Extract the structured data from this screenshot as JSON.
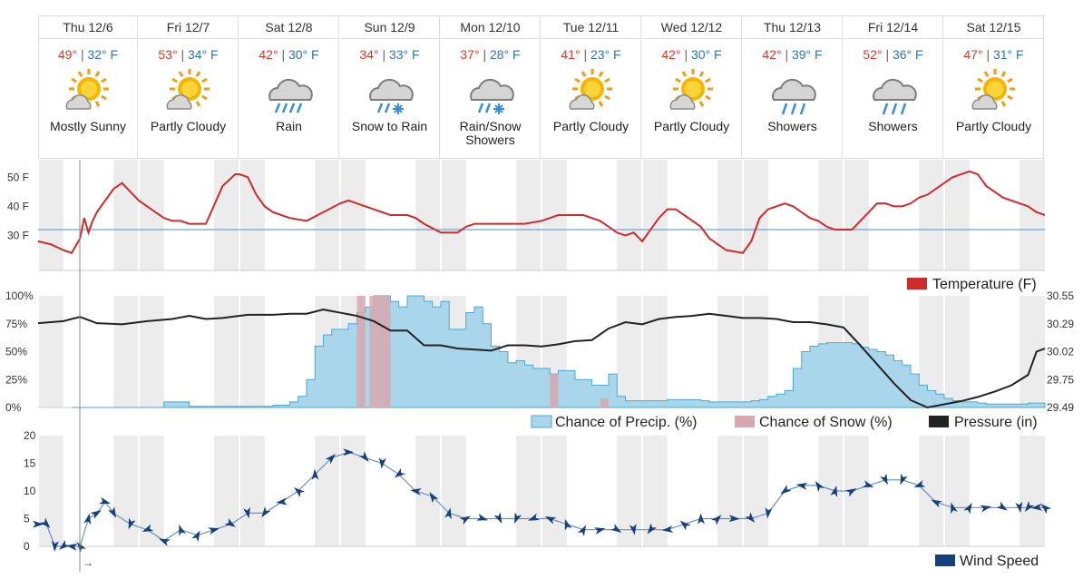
{
  "forecast": {
    "days": [
      {
        "label": "Thu 12/6",
        "hi": "49°",
        "lo": "32°",
        "unit": "F",
        "cond": "Mostly Sunny",
        "icon": "sun-cloud-icon"
      },
      {
        "label": "Fri 12/7",
        "hi": "53°",
        "lo": "34°",
        "unit": "F",
        "cond": "Partly Cloudy",
        "icon": "sun-cloud-icon"
      },
      {
        "label": "Sat 12/8",
        "hi": "42°",
        "lo": "30°",
        "unit": "F",
        "cond": "Rain",
        "icon": "rain-cloud-icon"
      },
      {
        "label": "Sun 12/9",
        "hi": "34°",
        "lo": "33°",
        "unit": "F",
        "cond": "Snow to Rain",
        "icon": "rain-snow-cloud-icon"
      },
      {
        "label": "Mon 12/10",
        "hi": "37°",
        "lo": "28°",
        "unit": "F",
        "cond": "Rain/Snow Showers",
        "icon": "rain-snow-cloud-icon"
      },
      {
        "label": "Tue 12/11",
        "hi": "41°",
        "lo": "23°",
        "unit": "F",
        "cond": "Partly Cloudy",
        "icon": "sun-cloud-icon"
      },
      {
        "label": "Wed 12/12",
        "hi": "42°",
        "lo": "30°",
        "unit": "F",
        "cond": "Partly Cloudy",
        "icon": "sun-cloud-icon"
      },
      {
        "label": "Thu 12/13",
        "hi": "42°",
        "lo": "39°",
        "unit": "F",
        "cond": "Showers",
        "icon": "showers-cloud-icon"
      },
      {
        "label": "Fri 12/14",
        "hi": "52°",
        "lo": "36°",
        "unit": "F",
        "cond": "Showers",
        "icon": "showers-cloud-icon"
      },
      {
        "label": "Sat 12/15",
        "hi": "47°",
        "lo": "31°",
        "unit": "F",
        "cond": "Partly Cloudy",
        "icon": "sun-cloud-icon"
      }
    ]
  },
  "colors": {
    "temperature": "#d02b2b",
    "freezing_line": "#4a8fd0",
    "precip_fill": "#a9d6ea",
    "precip_line": "#4fa6d4",
    "snow_fill": "#d8a8b0",
    "pressure": "#222222",
    "wind": "#14407e",
    "night_band": "#ececec"
  },
  "chart_data": [
    {
      "type": "line",
      "name": "temperature",
      "x_unit": "hours from Thu 12/6 00:00",
      "xlim": [
        0,
        240
      ],
      "ylabels": [
        "50 F",
        "40 F",
        "30 F"
      ],
      "ylim": [
        18,
        56
      ],
      "freezing_line": 32,
      "legend": "Temperature (F)",
      "legend_position": "bottom-right",
      "series": [
        {
          "name": "Temperature (F)",
          "x": [
            0,
            3,
            6,
            8,
            10,
            11,
            12,
            13,
            14,
            18,
            20,
            24,
            28,
            30,
            32,
            34,
            36,
            40,
            44,
            47,
            48,
            50,
            52,
            54,
            56,
            58,
            60,
            64,
            68,
            72,
            74,
            76,
            78,
            80,
            84,
            88,
            90,
            92,
            96,
            100,
            102,
            104,
            106,
            110,
            112,
            114,
            116,
            120,
            122,
            124,
            126,
            130,
            134,
            136,
            138,
            140,
            142,
            144,
            148,
            150,
            152,
            154,
            158,
            160,
            162,
            164,
            168,
            170,
            172,
            174,
            178,
            180,
            182,
            184,
            186,
            188,
            190,
            192,
            194,
            196,
            198,
            200,
            202,
            204,
            206,
            208,
            210,
            212,
            216,
            218,
            220,
            222,
            224,
            226,
            228,
            230,
            234,
            236,
            238,
            240
          ],
          "y": [
            28,
            27,
            25,
            24,
            29,
            36,
            31,
            35,
            38,
            46,
            48,
            42,
            38,
            36,
            35,
            35,
            34,
            34,
            47,
            51,
            51,
            50,
            44,
            40,
            38,
            37,
            36,
            35,
            38,
            41,
            42,
            41,
            40,
            39,
            37,
            37,
            36,
            34,
            31,
            31,
            33,
            34,
            34,
            34,
            34,
            34,
            34,
            35,
            36,
            37,
            37,
            37,
            35,
            33,
            31,
            30,
            31,
            28,
            36,
            39,
            39,
            37,
            33,
            29,
            27,
            25,
            24,
            28,
            36,
            39,
            41,
            40,
            38,
            36,
            35,
            33,
            32,
            32,
            32,
            35,
            38,
            41,
            41,
            40,
            40,
            41,
            43,
            44,
            48,
            50,
            51,
            52,
            51,
            47,
            45,
            43,
            41,
            40,
            38,
            37
          ]
        }
      ]
    },
    {
      "type": "area",
      "name": "precipitation",
      "ylabels_left": [
        "100%",
        "75%",
        "50%",
        "25%",
        "0%"
      ],
      "ylabels_right": [
        "30.55",
        "30.29",
        "30.02",
        "29.75",
        "29.49"
      ],
      "ylim_left": [
        0,
        100
      ],
      "ylim_right": [
        29.49,
        30.55
      ],
      "legend": [
        "Chance of Precip. (%)",
        "Chance of Snow (%)",
        "Pressure (in)"
      ],
      "legend_position": "bottom-right",
      "precip": {
        "name": "Chance of Precip. (%)",
        "x": [
          8,
          20,
          30,
          34,
          36,
          40,
          44,
          48,
          52,
          56,
          60,
          62,
          64,
          66,
          68,
          70,
          72,
          74,
          76,
          78,
          80,
          82,
          84,
          86,
          88,
          90,
          92,
          94,
          96,
          98,
          100,
          102,
          104,
          106,
          108,
          110,
          112,
          114,
          116,
          118,
          120,
          122,
          124,
          128,
          132,
          136,
          138,
          140,
          142,
          144,
          146,
          150,
          154,
          158,
          160,
          162,
          164,
          166,
          168,
          170,
          172,
          174,
          176,
          178,
          180,
          182,
          184,
          186,
          188,
          190,
          192,
          194,
          196,
          198,
          200,
          202,
          204,
          206,
          208,
          210,
          212,
          214,
          216,
          218,
          220,
          222,
          224,
          226,
          228,
          230,
          232,
          234,
          236,
          238,
          240
        ],
        "y": [
          0,
          0,
          5,
          5,
          1,
          1,
          1,
          1,
          1,
          2,
          5,
          10,
          25,
          55,
          65,
          70,
          70,
          75,
          85,
          90,
          100,
          100,
          95,
          90,
          100,
          100,
          95,
          90,
          95,
          70,
          70,
          85,
          90,
          75,
          55,
          50,
          40,
          42,
          38,
          35,
          35,
          30,
          33,
          25,
          20,
          30,
          10,
          6,
          6,
          6,
          6,
          7,
          7,
          6,
          5,
          5,
          5,
          5,
          5,
          6,
          7,
          10,
          12,
          15,
          35,
          50,
          55,
          57,
          58,
          58,
          58,
          57,
          54,
          52,
          50,
          47,
          42,
          38,
          30,
          20,
          15,
          12,
          8,
          6,
          5,
          5,
          4,
          3,
          3,
          3,
          3,
          3,
          4,
          4,
          4
        ]
      },
      "snow": {
        "name": "Chance of Snow (%)",
        "segments": [
          [
            76,
            78,
            100
          ],
          [
            79,
            84,
            100
          ],
          [
            122,
            124,
            30
          ],
          [
            134,
            136,
            8
          ]
        ]
      },
      "pressure": {
        "name": "Pressure (in)",
        "x": [
          0,
          6,
          10,
          14,
          20,
          26,
          32,
          36,
          40,
          44,
          50,
          56,
          60,
          64,
          68,
          72,
          76,
          80,
          84,
          88,
          92,
          96,
          100,
          104,
          108,
          112,
          116,
          120,
          124,
          128,
          132,
          136,
          140,
          144,
          148,
          152,
          156,
          160,
          164,
          168,
          172,
          176,
          180,
          184,
          188,
          192,
          196,
          200,
          204,
          208,
          212,
          216,
          220,
          224,
          228,
          232,
          236,
          238,
          240
        ],
        "y": [
          30.29,
          30.31,
          30.35,
          30.29,
          30.28,
          30.31,
          30.33,
          30.36,
          30.33,
          30.34,
          30.37,
          30.37,
          30.38,
          30.38,
          30.42,
          30.39,
          30.36,
          30.31,
          30.22,
          30.22,
          30.08,
          30.08,
          30.05,
          30.04,
          30.03,
          30.08,
          30.08,
          30.07,
          30.09,
          30.12,
          30.13,
          30.24,
          30.3,
          30.28,
          30.33,
          30.35,
          30.36,
          30.38,
          30.36,
          30.34,
          30.34,
          30.33,
          30.3,
          30.3,
          30.28,
          30.25,
          30.08,
          29.9,
          29.72,
          29.56,
          29.49,
          29.52,
          29.55,
          29.59,
          29.64,
          29.7,
          29.8,
          30.02,
          30.05
        ]
      }
    },
    {
      "type": "line",
      "name": "wind",
      "ylabels": [
        "20",
        "15",
        "10",
        "5",
        "0"
      ],
      "ylim": [
        0,
        20
      ],
      "legend": "Wind Speed",
      "legend_position": "bottom-right",
      "direction_label": "→",
      "series": [
        {
          "name": "Wind Speed",
          "x": [
            0,
            2,
            4,
            6,
            8,
            10,
            12,
            14,
            16,
            18,
            22,
            26,
            30,
            34,
            38,
            42,
            46,
            50,
            54,
            58,
            62,
            66,
            70,
            74,
            78,
            82,
            86,
            90,
            94,
            98,
            102,
            106,
            110,
            114,
            118,
            122,
            126,
            130,
            134,
            138,
            142,
            146,
            150,
            154,
            158,
            162,
            166,
            170,
            174,
            178,
            182,
            186,
            190,
            194,
            198,
            202,
            206,
            210,
            214,
            218,
            222,
            226,
            230,
            234,
            236,
            238,
            240
          ],
          "y": [
            4,
            4,
            0,
            0,
            0,
            0,
            5,
            6,
            8,
            6,
            4,
            3,
            1,
            3,
            2,
            3,
            4,
            6,
            6,
            8,
            10,
            13,
            16,
            17,
            16,
            15,
            13,
            10,
            9,
            6,
            5,
            5,
            5,
            5,
            5,
            5,
            4,
            3,
            3,
            3,
            3,
            3,
            3,
            4,
            5,
            5,
            5,
            5,
            6,
            10,
            11,
            11,
            10,
            10,
            11,
            12,
            12,
            11,
            8,
            7,
            7,
            7,
            7,
            7,
            7,
            7,
            7
          ]
        }
      ]
    }
  ]
}
